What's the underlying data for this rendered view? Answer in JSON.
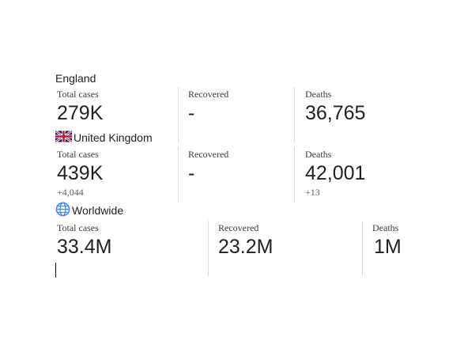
{
  "regions": [
    {
      "name": "England",
      "stats": {
        "total_label": "Total cases",
        "total_value": "279K",
        "total_delta": "",
        "recovered_label": "Recovered",
        "recovered_value": "-",
        "deaths_label": "Deaths",
        "deaths_value": "36,765",
        "deaths_delta": ""
      }
    },
    {
      "name": "United Kingdom",
      "icon": "uk-flag-icon",
      "stats": {
        "total_label": "Total cases",
        "total_value": "439K",
        "total_delta": "+4,044",
        "recovered_label": "Recovered",
        "recovered_value": "-",
        "deaths_label": "Deaths",
        "deaths_value": "42,001",
        "deaths_delta": "+13"
      }
    },
    {
      "name": "Worldwide",
      "icon": "globe-icon",
      "stats": {
        "total_label": "Total cases",
        "total_value": "33.4M",
        "recovered_label": "Recovered",
        "recovered_value": "23.2M",
        "deaths_label": "Deaths",
        "deaths_value": "1M"
      }
    }
  ],
  "colors": {
    "text": "#222222",
    "label": "#3c3c3c",
    "divider": "#dcdcdc",
    "globe": "#4285f4",
    "flag_blue": "#012169",
    "flag_red": "#c8102e"
  }
}
